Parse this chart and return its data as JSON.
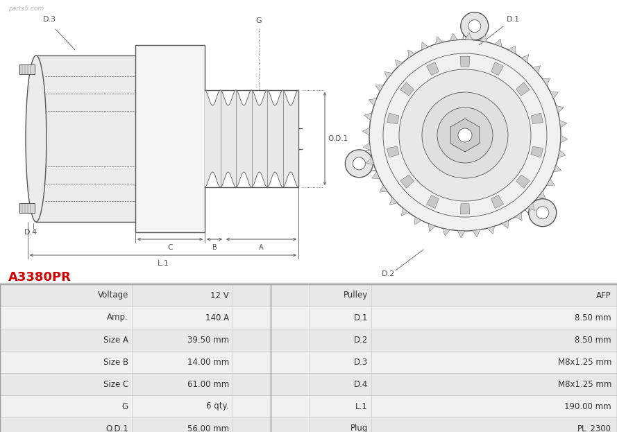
{
  "title": "A3380PR",
  "title_color": "#cc0000",
  "background_color": "#ffffff",
  "table_rows": [
    [
      "Voltage",
      "12 V",
      "Pulley",
      "AFP"
    ],
    [
      "Amp.",
      "140 A",
      "D.1",
      "8.50 mm"
    ],
    [
      "Size A",
      "39.50 mm",
      "D.2",
      "8.50 mm"
    ],
    [
      "Size B",
      "14.00 mm",
      "D.3",
      "M8x1.25 mm"
    ],
    [
      "Size C",
      "61.00 mm",
      "D.4",
      "M8x1.25 mm"
    ],
    [
      "G",
      "6 qty.",
      "L.1",
      "190.00 mm"
    ],
    [
      "O.D.1",
      "56.00 mm",
      "Plug",
      "PL_2300"
    ]
  ],
  "table_bg_odd": "#e8e8e8",
  "table_bg_even": "#f0f0f0",
  "table_border": "#cccccc",
  "text_color": "#333333",
  "diagram_line_color": "#666666",
  "dim_color": "#555555",
  "watermark": "parts5.com",
  "lc": "#555555",
  "lw_main": 1.0,
  "lw_thin": 0.6
}
